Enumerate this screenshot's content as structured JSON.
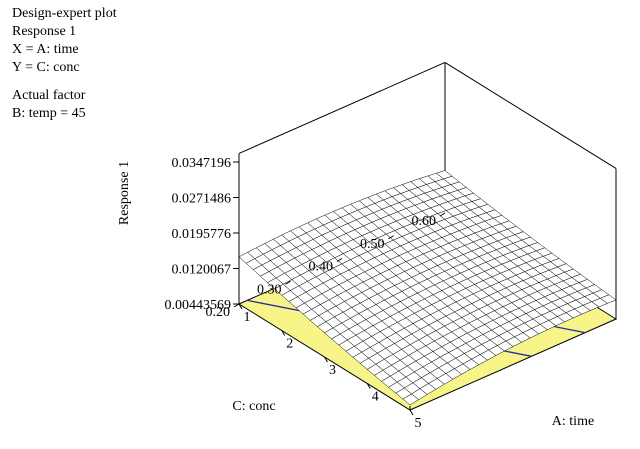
{
  "header": {
    "program": "Design-expert plot",
    "response": "Response 1",
    "x_def": "X = A: time",
    "y_def": "Y = C: conc",
    "actual_factor_title": "Actual factor",
    "actual_factor_value": "B: temp = 45"
  },
  "chart_data": {
    "type": "surface",
    "title": "",
    "xlabel": "A: time",
    "ylabel": "C: conc",
    "zlabel": "Response 1",
    "x_ticks": [
      "1",
      "2",
      "3",
      "4",
      "5"
    ],
    "y_ticks": [
      "0.20",
      "0.30",
      "0.40",
      "0.50",
      "0.60"
    ],
    "z_ticks": [
      "0.00443569",
      "0.0120067",
      "0.0195776",
      "0.0271486",
      "0.0347196"
    ],
    "xlim": [
      1,
      5
    ],
    "ylim": [
      0.2,
      0.6
    ],
    "zlim": [
      0.00443569,
      0.0347196
    ],
    "surface_corners": {
      "time_1_conc_0.60": 0.0135,
      "time_5_conc_0.60": 0.0085,
      "time_1_conc_0.20": 0.0145,
      "time_5_conc_0.20": 0.0055
    },
    "floor_contours": 3,
    "colors": {
      "floor_fill": "#f7f58a",
      "contour_line": "#2a2a9a",
      "mesh_line": "#000000"
    }
  }
}
